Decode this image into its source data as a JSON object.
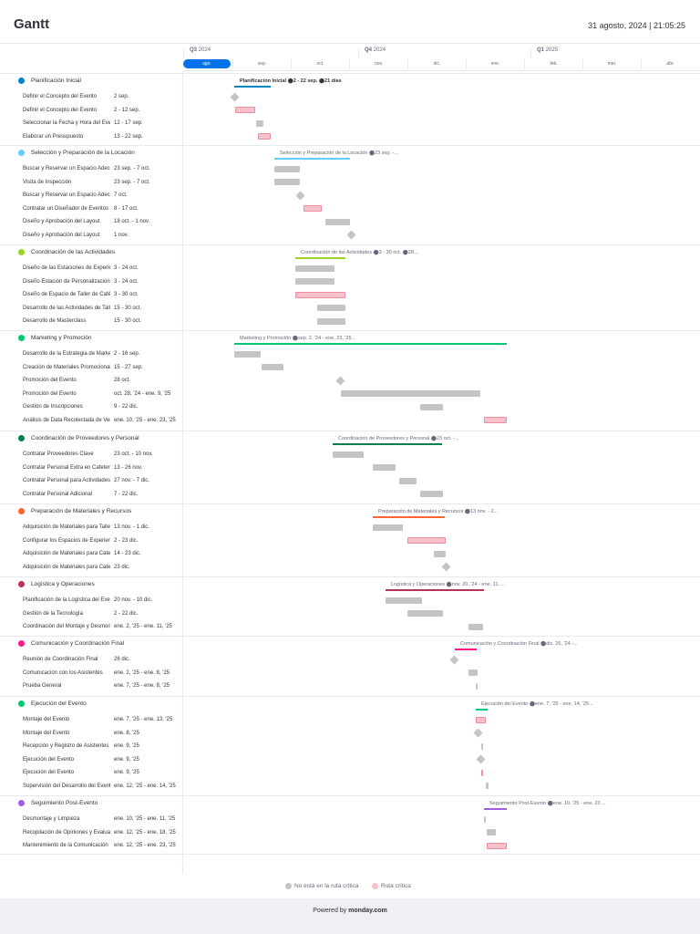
{
  "app": {
    "title": "Gantt",
    "datetime": "31 agosto, 2024 | 21:05:25"
  },
  "timeline": {
    "quarters": [
      {
        "label": "Q3",
        "year": "2024",
        "x": 0
      },
      {
        "label": "Q4",
        "year": "2024",
        "x": 192
      },
      {
        "label": "Q1",
        "year": "2025",
        "x": 381
      }
    ],
    "months": [
      {
        "label": "ago.",
        "selected": true
      },
      {
        "label": "sep."
      },
      {
        "label": "oct."
      },
      {
        "label": "nov."
      },
      {
        "label": "dic."
      },
      {
        "label": "ene."
      },
      {
        "label": "feb."
      },
      {
        "label": "mar."
      },
      {
        "label": "abr."
      }
    ]
  },
  "groups": [
    {
      "name": "Planificación Inicial",
      "color": "#0086c0",
      "summary": {
        "label": "Planificación Inicial ⬤2 - 22 sep. ⬤21 días",
        "bold": true
      },
      "tasks": [
        {
          "name": "Definir el Concepto del Evento",
          "date": "2 sep."
        },
        {
          "name": "Definir el Concepto del Evento",
          "date": "2 - 12 sep."
        },
        {
          "name": "Seleccionar la Fecha y Hora del Evento",
          "date": "12 - 17 sep."
        },
        {
          "name": "Elaborar un Presupuesto",
          "date": "13 - 22 sep."
        }
      ]
    },
    {
      "name": "Selección y Preparación de la Locación",
      "color": "#66ccff",
      "summary": {
        "label": "Selección y Preparación de la Locación ⬤23 sep. -..."
      },
      "tasks": [
        {
          "name": "Buscar y Reservar un Espacio Adecuado",
          "date": "23 sep. - 7 oct."
        },
        {
          "name": "Visita de Inspección",
          "date": "23 sep. - 7 oct."
        },
        {
          "name": "Buscar y Reservar un Espacio Adecuado",
          "date": "7 oct."
        },
        {
          "name": "Contratar un Diseñador de Eventos",
          "date": "8 - 17 oct."
        },
        {
          "name": "Diseño y Aprobación del Layout",
          "date": "18 oct. - 1 nov."
        },
        {
          "name": "Diseño y Aprobación del Layout",
          "date": "1 nov."
        }
      ]
    },
    {
      "name": "Coordinación de las Actividades",
      "color": "#9cd326",
      "summary": {
        "label": "Coordinación de las Actividades ⬤3 - 30 oct. ⬤28..."
      },
      "tasks": [
        {
          "name": "Diseño de las Estaciones de Experiencia",
          "date": "3 - 24 oct."
        },
        {
          "name": "Diseño Estación de Personalización",
          "date": "3 - 24 oct."
        },
        {
          "name": "Diseño de Espacio de Taller de Café",
          "date": "3 - 30 oct."
        },
        {
          "name": "Desarrollo de las Actividades de Taller",
          "date": "15 - 30 oct."
        },
        {
          "name": "Desarrollo de Masterclass",
          "date": "15 - 30 oct."
        }
      ]
    },
    {
      "name": "Marketing y Promoción",
      "color": "#00c875",
      "summary": {
        "label": "Marketing y Promoción ⬤sep. 2, '24 - ene. 23, '25..."
      },
      "tasks": [
        {
          "name": "Desarrollo de la Estrategia de Marketing",
          "date": "2 - 16 sep."
        },
        {
          "name": "Creación de Materiales Promocionales",
          "date": "15 - 27 sep."
        },
        {
          "name": "Promoción del Evento",
          "date": "28 oct."
        },
        {
          "name": "Promoción del Evento",
          "date": "oct. 28, '24 - ene. 9, '25"
        },
        {
          "name": "Gestión de Inscripciones",
          "date": "9 - 22 dic."
        },
        {
          "name": "Análisis de Data Recolectada de Ventas",
          "date": "ene. 10, '25 - ene. 23, '25"
        }
      ]
    },
    {
      "name": "Coordinación de Proveedores y Personal",
      "color": "#037f4c",
      "summary": {
        "label": "Coordinación de Proveedores y Personal ⬤23 oct. -..."
      },
      "tasks": [
        {
          "name": "Contratar Proveedores Clave",
          "date": "23 oct. - 10 nov."
        },
        {
          "name": "Contratar Personal Extra en Cafetería",
          "date": "13 - 26 nov."
        },
        {
          "name": "Contratar Personal para Actividades",
          "date": "27 nov. - 7 dic."
        },
        {
          "name": "Contratar Personal Adicional",
          "date": "7 - 22 dic."
        }
      ]
    },
    {
      "name": "Preparación de Materiales y Recursos",
      "color": "#ff642e",
      "summary": {
        "label": "Preparación de Materiales y Recursos ⬤13 nov. - 2..."
      },
      "tasks": [
        {
          "name": "Adquisición de Materiales para Talleres",
          "date": "13 nov. - 1 dic."
        },
        {
          "name": "Configurar los Espacios de Experiencia",
          "date": "2 - 23 dic."
        },
        {
          "name": "Adquisición de Materiales para Caterings",
          "date": "14 - 23 dic."
        },
        {
          "name": "Adquisición de Materiales para Caterings",
          "date": "23 dic."
        }
      ]
    },
    {
      "name": "Logística y Operaciones",
      "color": "#bb3354",
      "summary": {
        "label": "Logística y Operaciones ⬤nov. 20, '24 - ene. 11, ..."
      },
      "tasks": [
        {
          "name": "Planificación de la Logística del Evento",
          "date": "20 nov. - 10 dic."
        },
        {
          "name": "Gestión de la Tecnología",
          "date": "2 - 22 dic."
        },
        {
          "name": "Coordinación del Montaje y Desmontaje",
          "date": "ene. 2, '25 - ene. 11, '25"
        }
      ]
    },
    {
      "name": "Comunicación y Coordinación Final",
      "color": "#ff158a",
      "summary": {
        "label": "Comunicación y Coordinación Final ⬤dic. 26, '24 -..."
      },
      "tasks": [
        {
          "name": "Reunión de Coordinación Final",
          "date": "26 dic."
        },
        {
          "name": "Comunicación con los Asistentes",
          "date": "ene. 2, '25 - ene. 8, '25"
        },
        {
          "name": "Prueba General",
          "date": "ene. 7, '25 - ene. 8, '25"
        }
      ]
    },
    {
      "name": "Ejecución del Evento",
      "color": "#00c875",
      "summary": {
        "label": "Ejecución del Evento ⬤ene. 7, '25 - ene. 14, '25..."
      },
      "tasks": [
        {
          "name": "Montaje del Evento",
          "date": "ene. 7, '25 - ene. 13, '25"
        },
        {
          "name": "Montaje del Evento",
          "date": "ene. 8, '25"
        },
        {
          "name": "Recepción y Registro de Asistentes",
          "date": "ene. 9, '25"
        },
        {
          "name": "Ejecución del Evento",
          "date": "ene. 9, '25"
        },
        {
          "name": "Ejecución del Evento",
          "date": "ene. 9, '25"
        },
        {
          "name": "Supervisión del Desarrollo del Evento",
          "date": "ene. 12, '25 - ene. 14, '25"
        }
      ]
    },
    {
      "name": "Seguimiento Post-Evento",
      "color": "#a25ddc",
      "summary": {
        "label": "Seguimiento Post-Evento ⬤ene. 10, '25 - ene. 23 ..."
      },
      "tasks": [
        {
          "name": "Desmontaje y Limpieza",
          "date": "ene. 10, '25 - ene. 11, '25"
        },
        {
          "name": "Recopilación de Opiniones y Evaluación",
          "date": "ene. 12, '25 - ene. 18, '25"
        },
        {
          "name": "Mantenimiento de la Comunicación",
          "date": "ene. 12, '25 - ene. 23, '25"
        }
      ]
    }
  ],
  "legend": {
    "non_critical": "No está en la ruta crítica",
    "critical": "Ruta crítica",
    "non_critical_color": "#c4c4c4",
    "critical_color": "#f7c1cb"
  },
  "footer": {
    "prefix": "Powered by ",
    "brand": "monday.com"
  }
}
